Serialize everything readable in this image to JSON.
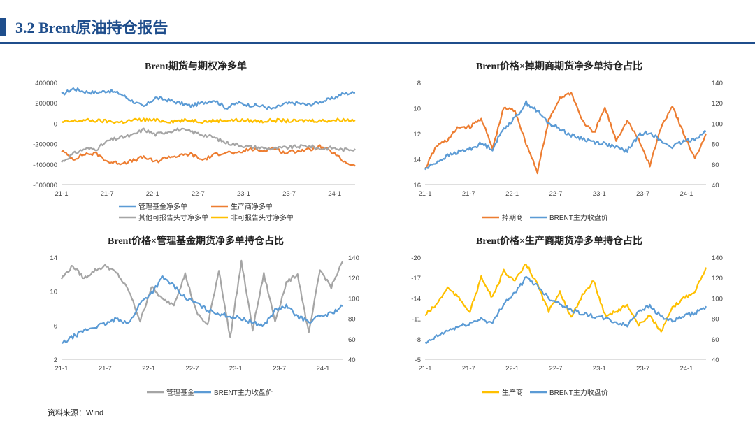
{
  "header": {
    "title": "3.2 Brent原油持仓报告"
  },
  "footer": {
    "source": "资料来源：Wind"
  },
  "colors": {
    "accent": "#1f4e8c",
    "blue": "#5b9bd5",
    "orange": "#ed7d31",
    "gray": "#a5a5a5",
    "yellow": "#ffc000"
  },
  "chart_data": [
    {
      "type": "line",
      "title": "Brent期货与期权净多单",
      "x_ticks": [
        "21-1",
        "21-7",
        "22-1",
        "22-7",
        "23-1",
        "23-7",
        "24-1"
      ],
      "y_ticks": [
        "400000",
        "200000",
        "0",
        "-200000",
        "-400000",
        "-600000"
      ],
      "ylim": [
        -600000,
        400000
      ],
      "legend_position": "bottom",
      "series": [
        {
          "name": "管理基金净多单",
          "color": "#5b9bd5",
          "values": [
            280000,
            340000,
            310000,
            300000,
            320000,
            290000,
            220000,
            160000,
            250000,
            230000,
            200000,
            170000,
            200000,
            230000,
            150000,
            200000,
            180000,
            170000,
            140000,
            190000,
            200000,
            180000,
            210000,
            240000,
            290000,
            300000
          ]
        },
        {
          "name": "生产商净多单",
          "color": "#ed7d31",
          "values": [
            -270000,
            -350000,
            -300000,
            -300000,
            -380000,
            -390000,
            -370000,
            -330000,
            -380000,
            -330000,
            -320000,
            -300000,
            -360000,
            -310000,
            -280000,
            -300000,
            -250000,
            -270000,
            -240000,
            -290000,
            -270000,
            -260000,
            -230000,
            -280000,
            -370000,
            -420000
          ]
        },
        {
          "name": "其他可报告头寸净多单",
          "color": "#a5a5a5",
          "values": [
            -380000,
            -300000,
            -250000,
            -250000,
            -170000,
            -140000,
            -120000,
            -60000,
            -110000,
            -80000,
            -60000,
            -80000,
            -110000,
            -140000,
            -190000,
            -210000,
            -230000,
            -240000,
            -250000,
            -240000,
            -230000,
            -220000,
            -250000,
            -240000,
            -260000,
            -250000
          ]
        },
        {
          "name": "非可报告头寸净多单",
          "color": "#ffc000",
          "values": [
            10000,
            20000,
            30000,
            25000,
            20000,
            10000,
            30000,
            35000,
            30000,
            20000,
            25000,
            30000,
            20000,
            25000,
            30000,
            30000,
            25000,
            20000,
            30000,
            25000,
            20000,
            30000,
            25000,
            30000,
            35000,
            30000
          ]
        }
      ]
    },
    {
      "type": "line",
      "title": "Brent价格×掉期商期货净多单持仓占比",
      "x_ticks": [
        "21-1",
        "21-7",
        "22-1",
        "22-7",
        "23-1",
        "23-7",
        "24-1"
      ],
      "y_ticks": [
        "8",
        "10",
        "12",
        "14",
        "16"
      ],
      "ylim": [
        8,
        16
      ],
      "y_reversed": true,
      "y2_ticks": [
        "140",
        "120",
        "100",
        "80",
        "60",
        "40"
      ],
      "y2lim": [
        40,
        140
      ],
      "legend_position": "bottom",
      "series": [
        {
          "name": "掉期商",
          "color": "#ed7d31",
          "axis": "left",
          "values": [
            14.8,
            13.0,
            12.5,
            11.5,
            11.5,
            10.8,
            13.2,
            10.0,
            10.2,
            12.8,
            15.0,
            11.0,
            9.2,
            8.8,
            11.0,
            12.0,
            10.0,
            12.5,
            11.0,
            12.5,
            14.5,
            11.5,
            9.8,
            12.0,
            14.0,
            12.0
          ]
        },
        {
          "name": "BRENT主力收盘价",
          "color": "#5b9bd5",
          "axis": "right",
          "values": [
            55,
            62,
            68,
            72,
            75,
            80,
            75,
            95,
            105,
            120,
            112,
            100,
            95,
            88,
            85,
            82,
            80,
            76,
            73,
            88,
            92,
            82,
            77,
            82,
            85,
            92
          ]
        }
      ]
    },
    {
      "type": "line",
      "title": "Brent价格×管理基金期货净多单持仓占比",
      "x_ticks": [
        "21-1",
        "21-7",
        "22-1",
        "22-7",
        "23-1",
        "23-7",
        "24-1"
      ],
      "y_ticks": [
        "14",
        "10",
        "6",
        "2"
      ],
      "ylim": [
        2,
        14
      ],
      "y2_ticks": [
        "140",
        "120",
        "100",
        "80",
        "60",
        "40"
      ],
      "y2lim": [
        40,
        140
      ],
      "legend_position": "bottom",
      "series": [
        {
          "name": "管理基金",
          "color": "#a5a5a5",
          "axis": "left",
          "values": [
            11.5,
            13.0,
            11.5,
            12.5,
            13.0,
            12.0,
            10.0,
            6.5,
            10.5,
            9.0,
            8.5,
            12.0,
            7.5,
            6.0,
            12.5,
            4.5,
            13.5,
            5.5,
            12.0,
            6.5,
            11.0,
            12.0,
            5.0,
            12.5,
            10.5,
            13.5
          ]
        },
        {
          "name": "BRENT主力收盘价",
          "color": "#5b9bd5",
          "axis": "right",
          "values": [
            55,
            62,
            68,
            72,
            75,
            80,
            75,
            95,
            105,
            120,
            112,
            100,
            95,
            88,
            85,
            82,
            80,
            76,
            73,
            88,
            92,
            82,
            77,
            82,
            85,
            92
          ]
        }
      ]
    },
    {
      "type": "line",
      "title": "Brent价格×生产商期货净多单持仓占比",
      "x_ticks": [
        "21-1",
        "21-7",
        "22-1",
        "22-7",
        "23-1",
        "23-7",
        "24-1"
      ],
      "y_ticks": [
        "-20",
        "-17",
        "-14",
        "-11",
        "-8",
        "-5"
      ],
      "ylim": [
        -20,
        -5
      ],
      "y_reversed": true,
      "y2_ticks": [
        "140",
        "120",
        "100",
        "80",
        "60",
        "40"
      ],
      "y2lim": [
        40,
        140
      ],
      "legend_position": "bottom",
      "series": [
        {
          "name": "生产商",
          "color": "#ffc000",
          "axis": "left",
          "values": [
            -11.5,
            -13.0,
            -15.5,
            -14.0,
            -12.0,
            -17.0,
            -14.0,
            -18.0,
            -16.5,
            -19.0,
            -16.0,
            -12.0,
            -15.0,
            -11.0,
            -14.5,
            -16.5,
            -11.5,
            -12.0,
            -13.0,
            -10.0,
            -11.5,
            -9.0,
            -12.5,
            -14.0,
            -15.0,
            -18.5
          ]
        },
        {
          "name": "BRENT主力收盘价",
          "color": "#5b9bd5",
          "axis": "right",
          "values": [
            55,
            62,
            68,
            72,
            75,
            80,
            75,
            95,
            105,
            120,
            112,
            100,
            95,
            88,
            85,
            82,
            80,
            76,
            73,
            88,
            92,
            82,
            77,
            82,
            85,
            92
          ]
        }
      ]
    }
  ]
}
